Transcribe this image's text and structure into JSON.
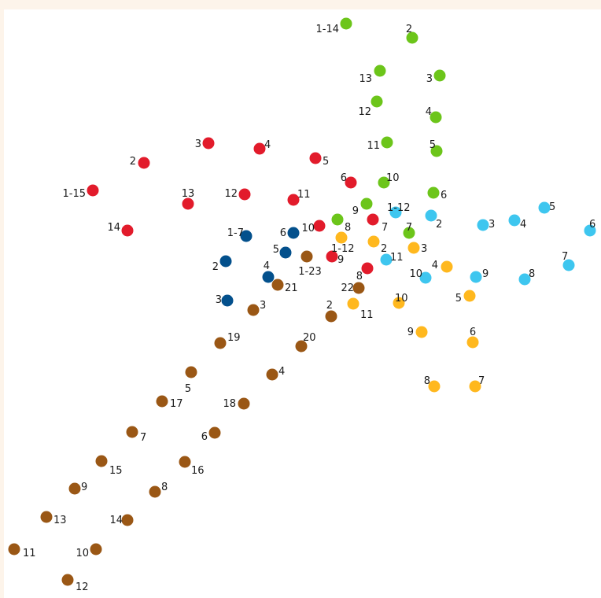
{
  "series": [
    {
      "color": "#6cc51a",
      "points": [
        {
          "label": "1-14"
        },
        {
          "label": "2"
        },
        {
          "label": "3"
        },
        {
          "label": "4"
        },
        {
          "label": "5"
        },
        {
          "label": "6"
        },
        {
          "label": "7"
        },
        {
          "label": "8"
        },
        {
          "label": "9"
        },
        {
          "label": "10"
        },
        {
          "label": "11"
        },
        {
          "label": "12"
        },
        {
          "label": "13"
        }
      ]
    },
    {
      "color": "#e21b2b",
      "points": [
        {
          "label": "1-15"
        },
        {
          "label": "2"
        },
        {
          "label": "3"
        },
        {
          "label": "4"
        },
        {
          "label": "5"
        },
        {
          "label": "6"
        },
        {
          "label": "7"
        },
        {
          "label": "8"
        },
        {
          "label": "9"
        },
        {
          "label": "10"
        },
        {
          "label": "11"
        },
        {
          "label": "12"
        },
        {
          "label": "13"
        },
        {
          "label": "14"
        }
      ]
    },
    {
      "color": "#3ec6ef",
      "points": [
        {
          "label": "1-12"
        },
        {
          "label": "2"
        },
        {
          "label": "3"
        },
        {
          "label": "4"
        },
        {
          "label": "5"
        },
        {
          "label": "6"
        },
        {
          "label": "7"
        },
        {
          "label": "8"
        },
        {
          "label": "9"
        },
        {
          "label": "10"
        },
        {
          "label": "11"
        }
      ]
    },
    {
      "color": "#ffb81e",
      "points": [
        {
          "label": "1-12"
        },
        {
          "label": "2"
        },
        {
          "label": "3"
        },
        {
          "label": "4"
        },
        {
          "label": "5"
        },
        {
          "label": "6"
        },
        {
          "label": "7"
        },
        {
          "label": "8"
        },
        {
          "label": "9"
        },
        {
          "label": "10"
        },
        {
          "label": "11"
        }
      ]
    },
    {
      "color": "#03508c",
      "points": [
        {
          "label": "1-7"
        },
        {
          "label": "2"
        },
        {
          "label": "3"
        },
        {
          "label": "4"
        },
        {
          "label": "5"
        },
        {
          "label": "6"
        }
      ]
    },
    {
      "color": "#9a5715",
      "points": [
        {
          "label": "1-23"
        },
        {
          "label": "2"
        },
        {
          "label": "3"
        },
        {
          "label": "4"
        },
        {
          "label": "5"
        },
        {
          "label": "6"
        },
        {
          "label": "7"
        },
        {
          "label": "8"
        },
        {
          "label": "9"
        },
        {
          "label": "10"
        },
        {
          "label": "11"
        },
        {
          "label": "12"
        },
        {
          "label": "13"
        },
        {
          "label": "14"
        },
        {
          "label": "15"
        },
        {
          "label": "16"
        },
        {
          "label": "17"
        },
        {
          "label": "18"
        },
        {
          "label": "19"
        },
        {
          "label": "20"
        },
        {
          "label": "21"
        },
        {
          "label": "22"
        }
      ]
    }
  ]
}
